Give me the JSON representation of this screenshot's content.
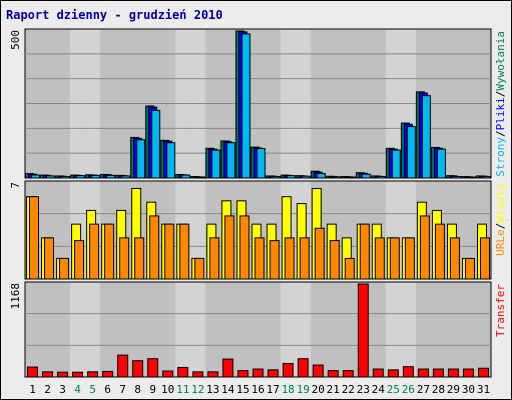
{
  "chart_data": {
    "type": "bar",
    "title": "Raport dzienny -  grudzień 2010",
    "categories": [
      "1",
      "2",
      "3",
      "4",
      "5",
      "6",
      "7",
      "8",
      "9",
      "10",
      "11",
      "12",
      "13",
      "14",
      "15",
      "16",
      "17",
      "18",
      "19",
      "20",
      "21",
      "22",
      "23",
      "24",
      "25",
      "26",
      "27",
      "28",
      "29",
      "30",
      "31"
    ],
    "weekend_days": [
      "4",
      "5",
      "11",
      "12",
      "18",
      "19",
      "25",
      "26"
    ],
    "panels": [
      {
        "name": "hits",
        "ytick": "500",
        "ymax": 500,
        "labels": [
          {
            "text": "Strony",
            "color": "#00b8f0"
          },
          {
            "text": "/",
            "color": "#000000"
          },
          {
            "text": "Pliki",
            "color": "#0000ff"
          },
          {
            "text": "/",
            "color": "#000000"
          },
          {
            "text": "Wywołania",
            "color": "#008060"
          }
        ],
        "series": [
          {
            "name": "Wywołania",
            "color": "#007060",
            "values": [
              15,
              10,
              7,
              10,
              11,
              12,
              9,
              138,
              245,
              128,
              12,
              5,
              101,
              126,
              500,
              105,
              7,
              10,
              8,
              23,
              6,
              5,
              18,
              7,
              101,
              187,
              293,
              104,
              8,
              5,
              7
            ]
          },
          {
            "name": "Pliki",
            "color": "#0000ff",
            "values": [
              13,
              8,
              6,
              9,
              10,
              11,
              8,
              135,
              241,
              125,
              11,
              4,
              98,
              123,
              497,
              102,
              6,
              9,
              7,
              20,
              5,
              4,
              16,
              6,
              98,
              183,
              289,
              101,
              7,
              4,
              6
            ]
          },
          {
            "name": "Strony",
            "color": "#00b8f0",
            "values": [
              10,
              7,
              5,
              8,
              9,
              9,
              7,
              130,
              230,
              120,
              10,
              3,
              95,
              120,
              490,
              100,
              5,
              8,
              6,
              15,
              4,
              3,
              13,
              5,
              95,
              175,
              280,
              98,
              5,
              3,
              5
            ]
          }
        ]
      },
      {
        "name": "visits",
        "ytick": "7",
        "ymax": 7,
        "labels": [
          {
            "text": "URLe",
            "color": "#ff8800"
          },
          {
            "text": "/",
            "color": "#000000"
          },
          {
            "text": "Wizyty",
            "color": "#ffff00"
          }
        ],
        "series": [
          {
            "name": "Wizyty",
            "color": "#ffff00",
            "values": [
              6,
              3,
              1.5,
              4,
              5,
              4,
              5,
              6.6,
              5.6,
              4,
              4,
              1.5,
              4,
              5.7,
              5.7,
              4,
              4,
              6,
              5.5,
              6.6,
              4,
              3,
              4,
              4,
              3,
              3,
              5.6,
              5,
              4,
              1.5,
              4
            ]
          },
          {
            "name": "URLe",
            "color": "#ff8800",
            "values": [
              6,
              3,
              1.5,
              2.8,
              4,
              4,
              3,
              3,
              4.6,
              4,
              4,
              1.5,
              3,
              4.6,
              4.6,
              3,
              2.8,
              3,
              3,
              3.7,
              2.8,
              1.5,
              4,
              3,
              3,
              3,
              4.6,
              4,
              3,
              1.5,
              3
            ]
          }
        ]
      },
      {
        "name": "transfer",
        "ytick": "1168",
        "ymax": 1168,
        "labels": [
          {
            "text": "Transfer",
            "color": "#ff0000"
          }
        ],
        "series": [
          {
            "name": "Transfer",
            "color": "#ff0000",
            "values": [
              125,
              65,
              60,
              60,
              65,
              70,
              275,
              205,
              230,
              75,
              120,
              65,
              65,
              225,
              80,
              100,
              90,
              170,
              230,
              150,
              80,
              80,
              1168,
              100,
              90,
              130,
              100,
              100,
              100,
              100,
              110
            ]
          }
        ]
      }
    ]
  },
  "colors": {
    "frame_bg": "#ececec",
    "plot_bg": "#c0c0c0",
    "weekend_bg": "#d3d3d3",
    "grid": "#888888",
    "title": "#0000a0",
    "weekend_label": "#00804a"
  }
}
